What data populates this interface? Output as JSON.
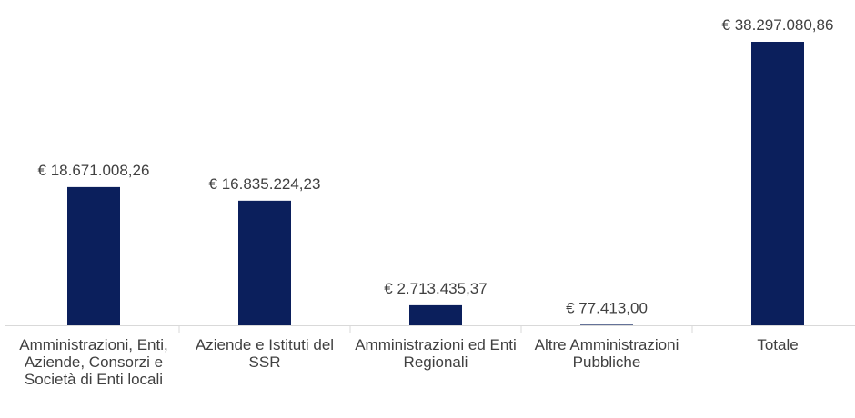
{
  "chart_data": {
    "type": "bar",
    "categories": [
      "Amministrazioni, Enti, Aziende, Consorzi e Società di Enti locali",
      "Aziende e Istituti del SSR",
      "Amministrazioni ed Enti Regionali",
      "Altre Amministrazioni Pubbliche",
      "Totale"
    ],
    "values": [
      18671008.26,
      16835224.23,
      2713435.37,
      77413.0,
      38297080.86
    ],
    "value_labels": [
      "€ 18.671.008,26",
      "€ 16.835.224,23",
      "€ 2.713.435,37",
      "€ 77.413,00",
      "€ 38.297.080,86"
    ],
    "color": "#0b1f5c"
  }
}
